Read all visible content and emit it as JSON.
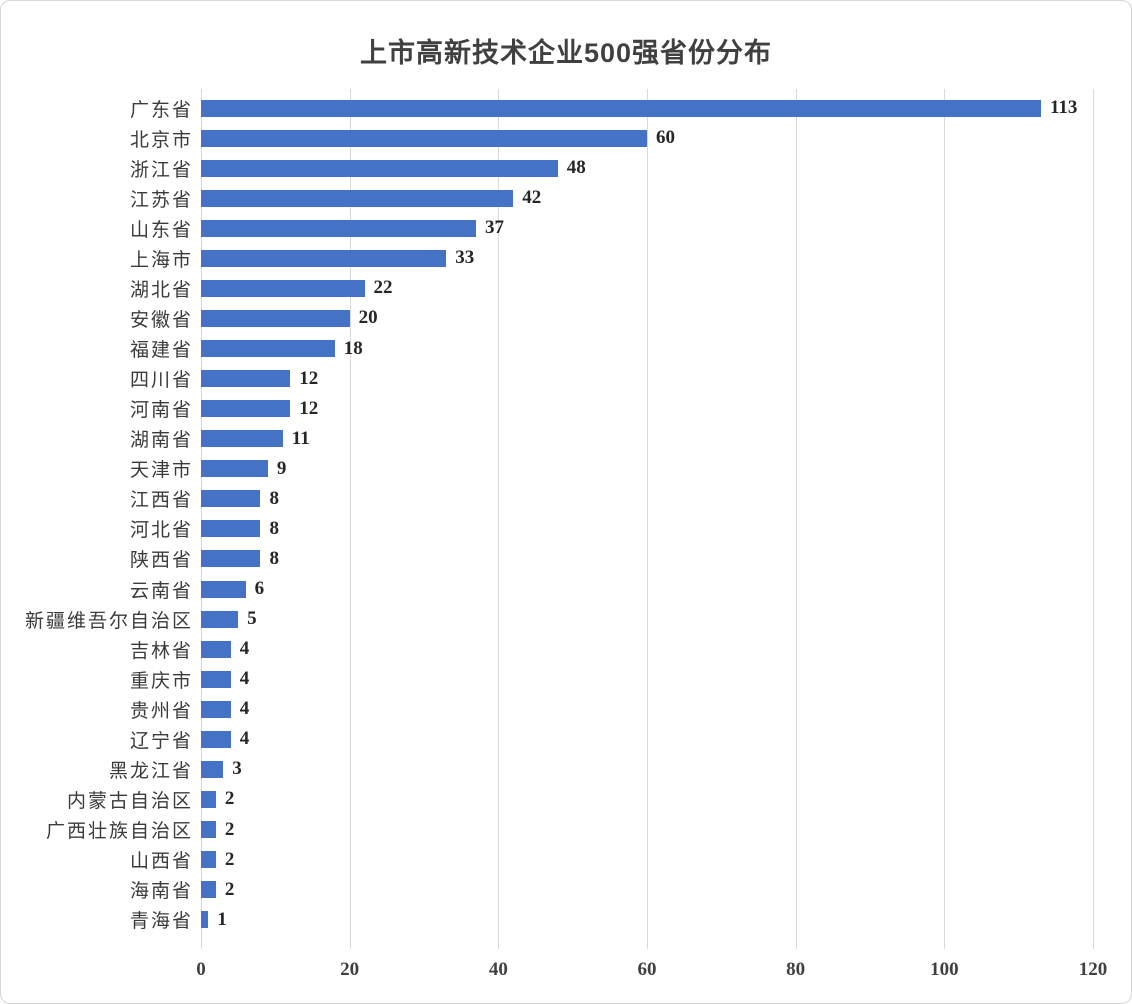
{
  "chart_data": {
    "type": "bar",
    "orientation": "horizontal",
    "title": "上市高新技术企业500强省份分布",
    "categories": [
      "广东省",
      "北京市",
      "浙江省",
      "江苏省",
      "山东省",
      "上海市",
      "湖北省",
      "安徽省",
      "福建省",
      "四川省",
      "河南省",
      "湖南省",
      "天津市",
      "江西省",
      "河北省",
      "陕西省",
      "云南省",
      "新疆维吾尔自治区",
      "吉林省",
      "重庆市",
      "贵州省",
      "辽宁省",
      "黑龙江省",
      "内蒙古自治区",
      "广西壮族自治区",
      "山西省",
      "海南省",
      "青海省"
    ],
    "values": [
      113,
      60,
      48,
      42,
      37,
      33,
      22,
      20,
      18,
      12,
      12,
      11,
      9,
      8,
      8,
      8,
      6,
      5,
      4,
      4,
      4,
      4,
      3,
      2,
      2,
      2,
      2,
      1
    ],
    "xlabel": "",
    "ylabel": "",
    "xlim": [
      0,
      120
    ],
    "xticks": [
      0,
      20,
      40,
      60,
      80,
      100,
      120
    ],
    "grid": "vertical",
    "legend": "none",
    "value_labels": true,
    "bar_color": "#4472C4",
    "gridline_color": "#d9d9d9",
    "title_color": "#404040",
    "label_color": "#3b3b3b",
    "value_label_color": "#262626"
  }
}
